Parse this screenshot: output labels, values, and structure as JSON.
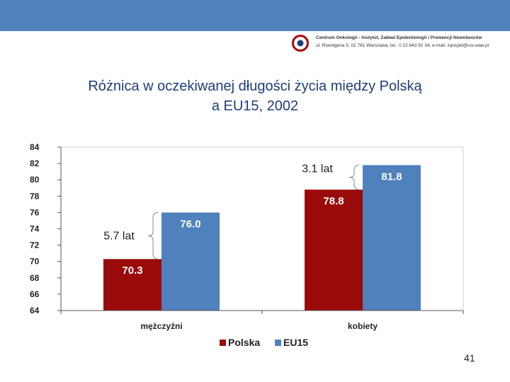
{
  "header": {
    "logo_line1": "Centrum Onkologii - Instytut, Zakład Epidemiologii i Prewencji Nowotworów",
    "logo_line2": "ul. Roentgena 5, 02 781 Warszawa, tel.: 0 22 643 92 34, e-mail: zancpid@coi.waw.pl",
    "band_color": "#4f81bd"
  },
  "title": {
    "line1": "Różnica w oczekiwanej długości życia między Polską",
    "line2": "a EU15, 2002"
  },
  "chart_data": {
    "type": "bar",
    "title": "Różnica w oczekiwanej długości życia między Polską a EU15, 2002",
    "categories": [
      "mężczyźni",
      "kobiety"
    ],
    "series": [
      {
        "name": "Polska",
        "values": [
          70.3,
          78.8
        ],
        "color": "#9b0a0a",
        "labels": [
          "70.3",
          "78.8"
        ]
      },
      {
        "name": "EU15",
        "values": [
          76.0,
          81.8
        ],
        "color": "#4f81bd",
        "labels": [
          "76.0",
          "81.8"
        ]
      }
    ],
    "ylim": [
      64,
      84
    ],
    "yticks": [
      "64",
      "66",
      "68",
      "70",
      "72",
      "74",
      "76",
      "78",
      "80",
      "82",
      "84"
    ],
    "annotations": [
      "5.7 lat",
      "3.1 lat"
    ],
    "legend_placement": "bottom-center",
    "grid": false
  },
  "page_number": "41"
}
